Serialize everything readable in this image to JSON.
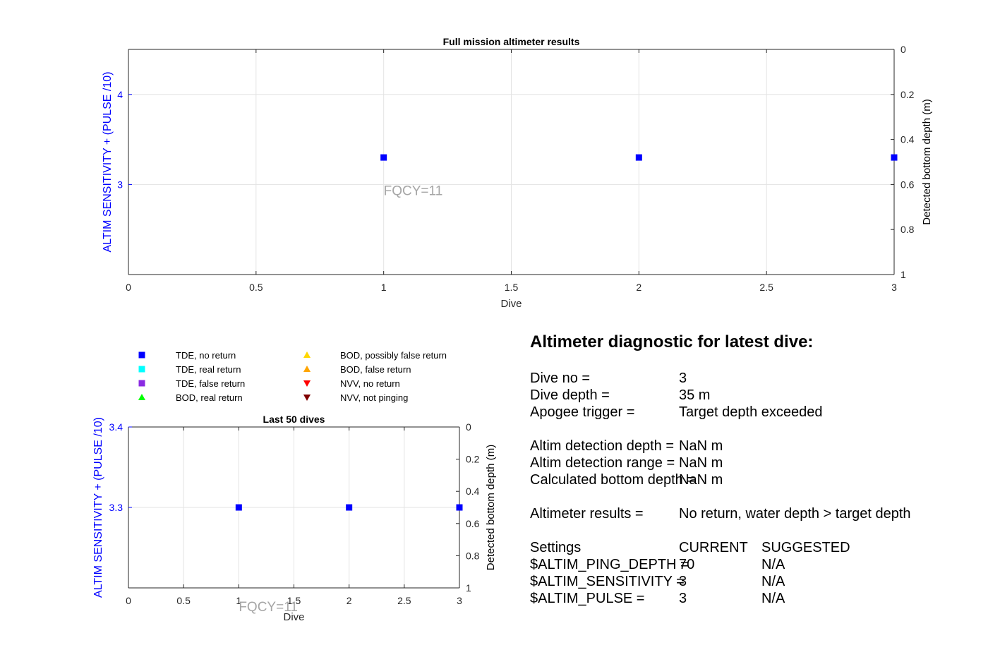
{
  "chart_data": [
    {
      "type": "scatter",
      "title": "Full mission altimeter results",
      "xlabel": "Dive",
      "ylabel": "ALTIM SENSITIVITY + (PULSE /10)",
      "y2label": "Detected bottom depth (m)",
      "xlim": [
        0,
        3
      ],
      "ylim": [
        2.0,
        4.5
      ],
      "y2lim": [
        0,
        1
      ],
      "y2_reversed": true,
      "xticks": [
        "0",
        "0.5",
        "1",
        "1.5",
        "2",
        "2.5",
        "3"
      ],
      "yticks": [
        "3",
        "4"
      ],
      "y2ticks": [
        "0",
        "0.2",
        "0.4",
        "0.6",
        "0.8",
        "1"
      ],
      "grid": true,
      "series": [
        {
          "name": "TDE, no return",
          "marker": "square",
          "color": "#0000ff",
          "x": [
            1,
            2,
            3
          ],
          "y": [
            3.3,
            3.3,
            3.3
          ]
        }
      ],
      "annotations": [
        {
          "text": "FQCY=11",
          "x": 1,
          "y": 2.88
        }
      ]
    },
    {
      "type": "scatter",
      "title": "Last 50 dives",
      "xlabel": "Dive",
      "ylabel": "ALTIM SENSITIVITY + (PULSE /10)",
      "y2label": "Detected bottom depth (m)",
      "xlim": [
        0,
        3
      ],
      "ylim": [
        3.2,
        3.4
      ],
      "y2lim": [
        0,
        1
      ],
      "y2_reversed": true,
      "xticks": [
        "0",
        "0.5",
        "1",
        "1.5",
        "2",
        "2.5",
        "3"
      ],
      "yticks": [
        "3.3",
        "3.4"
      ],
      "y2ticks": [
        "0",
        "0.2",
        "0.4",
        "0.6",
        "0.8",
        "1"
      ],
      "grid": true,
      "series": [
        {
          "name": "TDE, no return",
          "marker": "square",
          "color": "#0000ff",
          "x": [
            1,
            2,
            3
          ],
          "y": [
            3.3,
            3.3,
            3.3
          ]
        }
      ],
      "annotations": [
        {
          "text": "FQCY=11",
          "x": 1,
          "y": 3.171
        }
      ]
    }
  ],
  "legend": {
    "placement": "top",
    "items": [
      {
        "label": "TDE, no return",
        "marker": "square",
        "color": "#0000ff"
      },
      {
        "label": "TDE, real return",
        "marker": "square",
        "color": "#00ffff"
      },
      {
        "label": "TDE, false return",
        "marker": "square",
        "color": "#8a2be2"
      },
      {
        "label": "BOD, real return",
        "marker": "triangle-up",
        "color": "#00ff00"
      },
      {
        "label": "BOD, possibly false return",
        "marker": "triangle-up",
        "color": "#ffd700"
      },
      {
        "label": "BOD, false return",
        "marker": "triangle-up",
        "color": "#ffa500"
      },
      {
        "label": "NVV, no return",
        "marker": "triangle-down",
        "color": "#ff0000"
      },
      {
        "label": "NVV, not pinging",
        "marker": "triangle-down",
        "color": "#800000"
      }
    ]
  },
  "diagnostic": {
    "title": "Altimeter diagnostic for latest dive:",
    "dive_no": {
      "label": "Dive no =",
      "value": "3"
    },
    "dive_depth": {
      "label": "Dive depth =",
      "value": "35 m"
    },
    "apogee_trigger": {
      "label": "Apogee trigger =",
      "value": "Target depth exceeded"
    },
    "detection_depth": {
      "label": "Altim detection depth =",
      "value": "NaN m"
    },
    "detection_range": {
      "label": "Altim detection range =",
      "value": "NaN m"
    },
    "bottom_depth": {
      "label": "Calculated bottom depth =",
      "value": "NaN m"
    },
    "results": {
      "label": "Altimeter results =",
      "value": "No return, water depth > target depth"
    },
    "settings": {
      "label": "Settings",
      "current": "CURRENT",
      "suggested": "SUGGESTED"
    },
    "ping_depth": {
      "label": "$ALTIM_PING_DEPTH =",
      "current": "70",
      "suggested": "N/A"
    },
    "sensitivity": {
      "label": "$ALTIM_SENSITIVITY =",
      "current": "3",
      "suggested": "N/A"
    },
    "pulse": {
      "label": "$ALTIM_PULSE =",
      "current": "3",
      "suggested": "N/A"
    }
  }
}
